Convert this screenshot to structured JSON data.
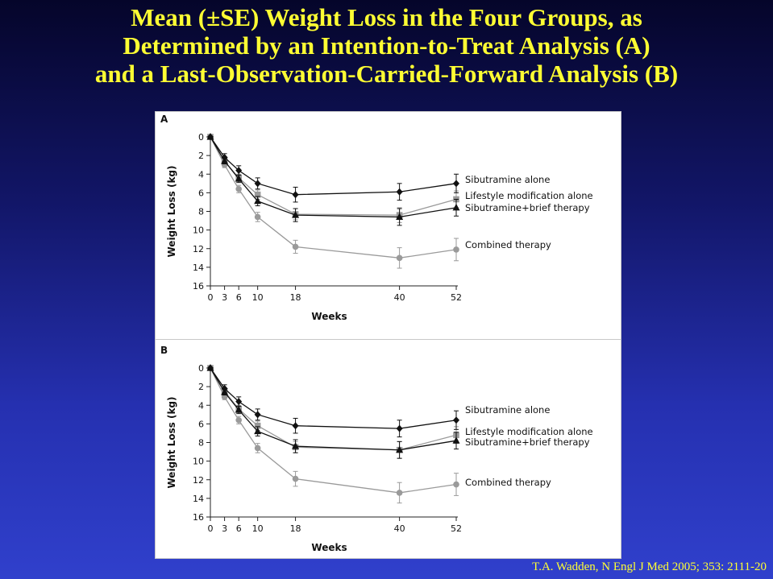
{
  "slide": {
    "title_lines": [
      "Mean (±SE) Weight Loss in the Four Groups, as",
      "Determined by an Intention-to-Treat Analysis (A)",
      "and a Last-Observation-Carried-Forward Analysis (B)"
    ],
    "citation": "T.A. Wadden, N Engl J Med 2005; 353: 2111-20"
  },
  "colors": {
    "title": "#ffff33",
    "background_top": "#05052a",
    "background_bottom": "#3040cc",
    "series_black": "#111111",
    "series_gray": "#9a9a9a"
  },
  "chart_data": [
    {
      "type": "line",
      "panel_label": "A",
      "xlabel": "Weeks",
      "ylabel": "Weight Loss (kg)",
      "x": [
        0,
        3,
        6,
        10,
        18,
        40,
        52
      ],
      "x_ticks": [
        0,
        3,
        6,
        10,
        18,
        40,
        52
      ],
      "y_ticks": [
        0,
        2,
        4,
        6,
        8,
        10,
        12,
        14,
        16
      ],
      "xlim": [
        0,
        52
      ],
      "ylim": [
        0,
        16
      ],
      "y_inverted": true,
      "grid": false,
      "legend_placement": "right, at line ends",
      "series": [
        {
          "name": "Sibutramine alone",
          "marker": "diamond",
          "color": "#111111",
          "values": [
            0,
            2.2,
            3.6,
            5.0,
            6.2,
            5.9,
            5.0
          ],
          "se": [
            0.2,
            0.4,
            0.5,
            0.6,
            0.8,
            0.9,
            1.0
          ]
        },
        {
          "name": "Lifestyle modification alone",
          "marker": "square",
          "color": "#9a9a9a",
          "values": [
            0,
            2.6,
            4.4,
            6.2,
            8.3,
            8.4,
            6.7
          ],
          "se": [
            0.2,
            0.3,
            0.4,
            0.5,
            0.6,
            0.8,
            0.9
          ]
        },
        {
          "name": "Sibutramine+brief therapy",
          "marker": "triangle",
          "color": "#111111",
          "values": [
            0,
            2.6,
            4.5,
            6.9,
            8.4,
            8.6,
            7.6
          ],
          "se": [
            0.2,
            0.3,
            0.4,
            0.5,
            0.7,
            0.9,
            0.9
          ]
        },
        {
          "name": "Combined therapy",
          "marker": "circle",
          "color": "#9a9a9a",
          "values": [
            0,
            3.0,
            5.6,
            8.6,
            11.8,
            13.0,
            12.1
          ],
          "se": [
            0.2,
            0.3,
            0.4,
            0.5,
            0.7,
            1.1,
            1.2
          ]
        }
      ]
    },
    {
      "type": "line",
      "panel_label": "B",
      "xlabel": "Weeks",
      "ylabel": "Weight Loss (kg)",
      "x": [
        0,
        3,
        6,
        10,
        18,
        40,
        52
      ],
      "x_ticks": [
        0,
        3,
        6,
        10,
        18,
        40,
        52
      ],
      "y_ticks": [
        0,
        2,
        4,
        6,
        8,
        10,
        12,
        14,
        16
      ],
      "xlim": [
        0,
        52
      ],
      "ylim": [
        0,
        16
      ],
      "y_inverted": true,
      "grid": false,
      "legend_placement": "right, at line ends",
      "series": [
        {
          "name": "Sibutramine alone",
          "marker": "diamond",
          "color": "#111111",
          "values": [
            0,
            2.2,
            3.6,
            5.0,
            6.2,
            6.5,
            5.6
          ],
          "se": [
            0.2,
            0.4,
            0.5,
            0.6,
            0.8,
            0.9,
            1.0
          ]
        },
        {
          "name": "Lifestyle modification alone",
          "marker": "square",
          "color": "#9a9a9a",
          "values": [
            0,
            2.5,
            4.4,
            6.2,
            8.5,
            8.8,
            7.2
          ],
          "se": [
            0.2,
            0.3,
            0.4,
            0.5,
            0.6,
            0.9,
            0.9
          ]
        },
        {
          "name": "Sibutramine+brief therapy",
          "marker": "triangle",
          "color": "#111111",
          "values": [
            0,
            2.6,
            4.5,
            6.8,
            8.4,
            8.8,
            7.8
          ],
          "se": [
            0.2,
            0.3,
            0.4,
            0.5,
            0.7,
            0.9,
            0.9
          ]
        },
        {
          "name": "Combined therapy",
          "marker": "circle",
          "color": "#9a9a9a",
          "values": [
            0,
            3.1,
            5.6,
            8.6,
            11.9,
            13.4,
            12.5
          ],
          "se": [
            0.2,
            0.3,
            0.4,
            0.5,
            0.8,
            1.1,
            1.2
          ]
        }
      ]
    }
  ]
}
